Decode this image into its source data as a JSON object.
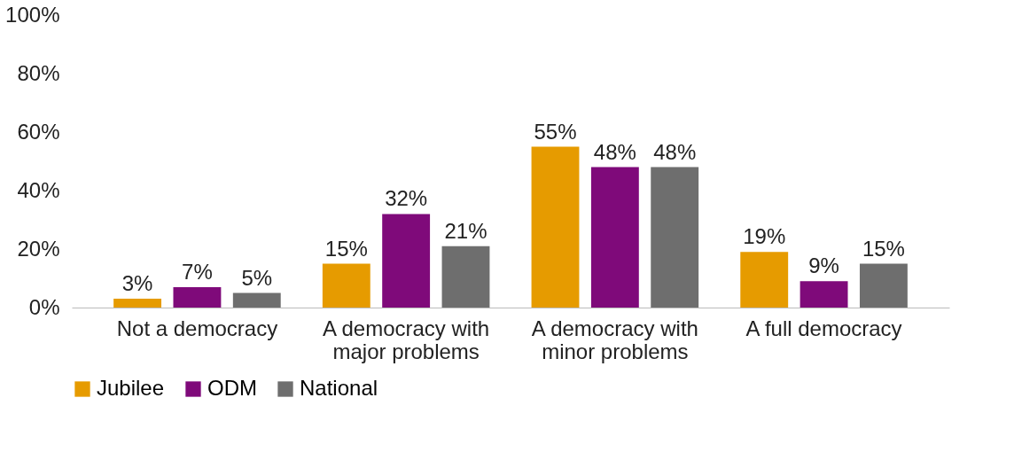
{
  "chart_data": {
    "type": "bar",
    "categories": [
      "Not a democracy",
      "A democracy with major problems",
      "A democracy with minor problems",
      "A full democracy"
    ],
    "series": [
      {
        "name": "Jubilee",
        "color": "#e69b00",
        "values": [
          3,
          15,
          55,
          19
        ]
      },
      {
        "name": "ODM",
        "color": "#7f0a7a",
        "values": [
          7,
          32,
          48,
          9
        ]
      },
      {
        "name": "National",
        "color": "#6e6e6e",
        "values": [
          5,
          21,
          48,
          15
        ]
      }
    ],
    "ylim": [
      0,
      100
    ],
    "yticks": [
      {
        "value": 0,
        "label": "0%"
      },
      {
        "value": 20,
        "label": "20%"
      },
      {
        "value": 40,
        "label": "40%"
      },
      {
        "value": 60,
        "label": "60%"
      },
      {
        "value": 80,
        "label": "80%"
      },
      {
        "value": 100,
        "label": "100%"
      }
    ],
    "value_labels": [
      [
        "3%",
        "15%",
        "55%",
        "19%"
      ],
      [
        "7%",
        "32%",
        "48%",
        "9%"
      ],
      [
        "5%",
        "21%",
        "48%",
        "15%"
      ]
    ],
    "grid": false,
    "legend": "bottom"
  }
}
